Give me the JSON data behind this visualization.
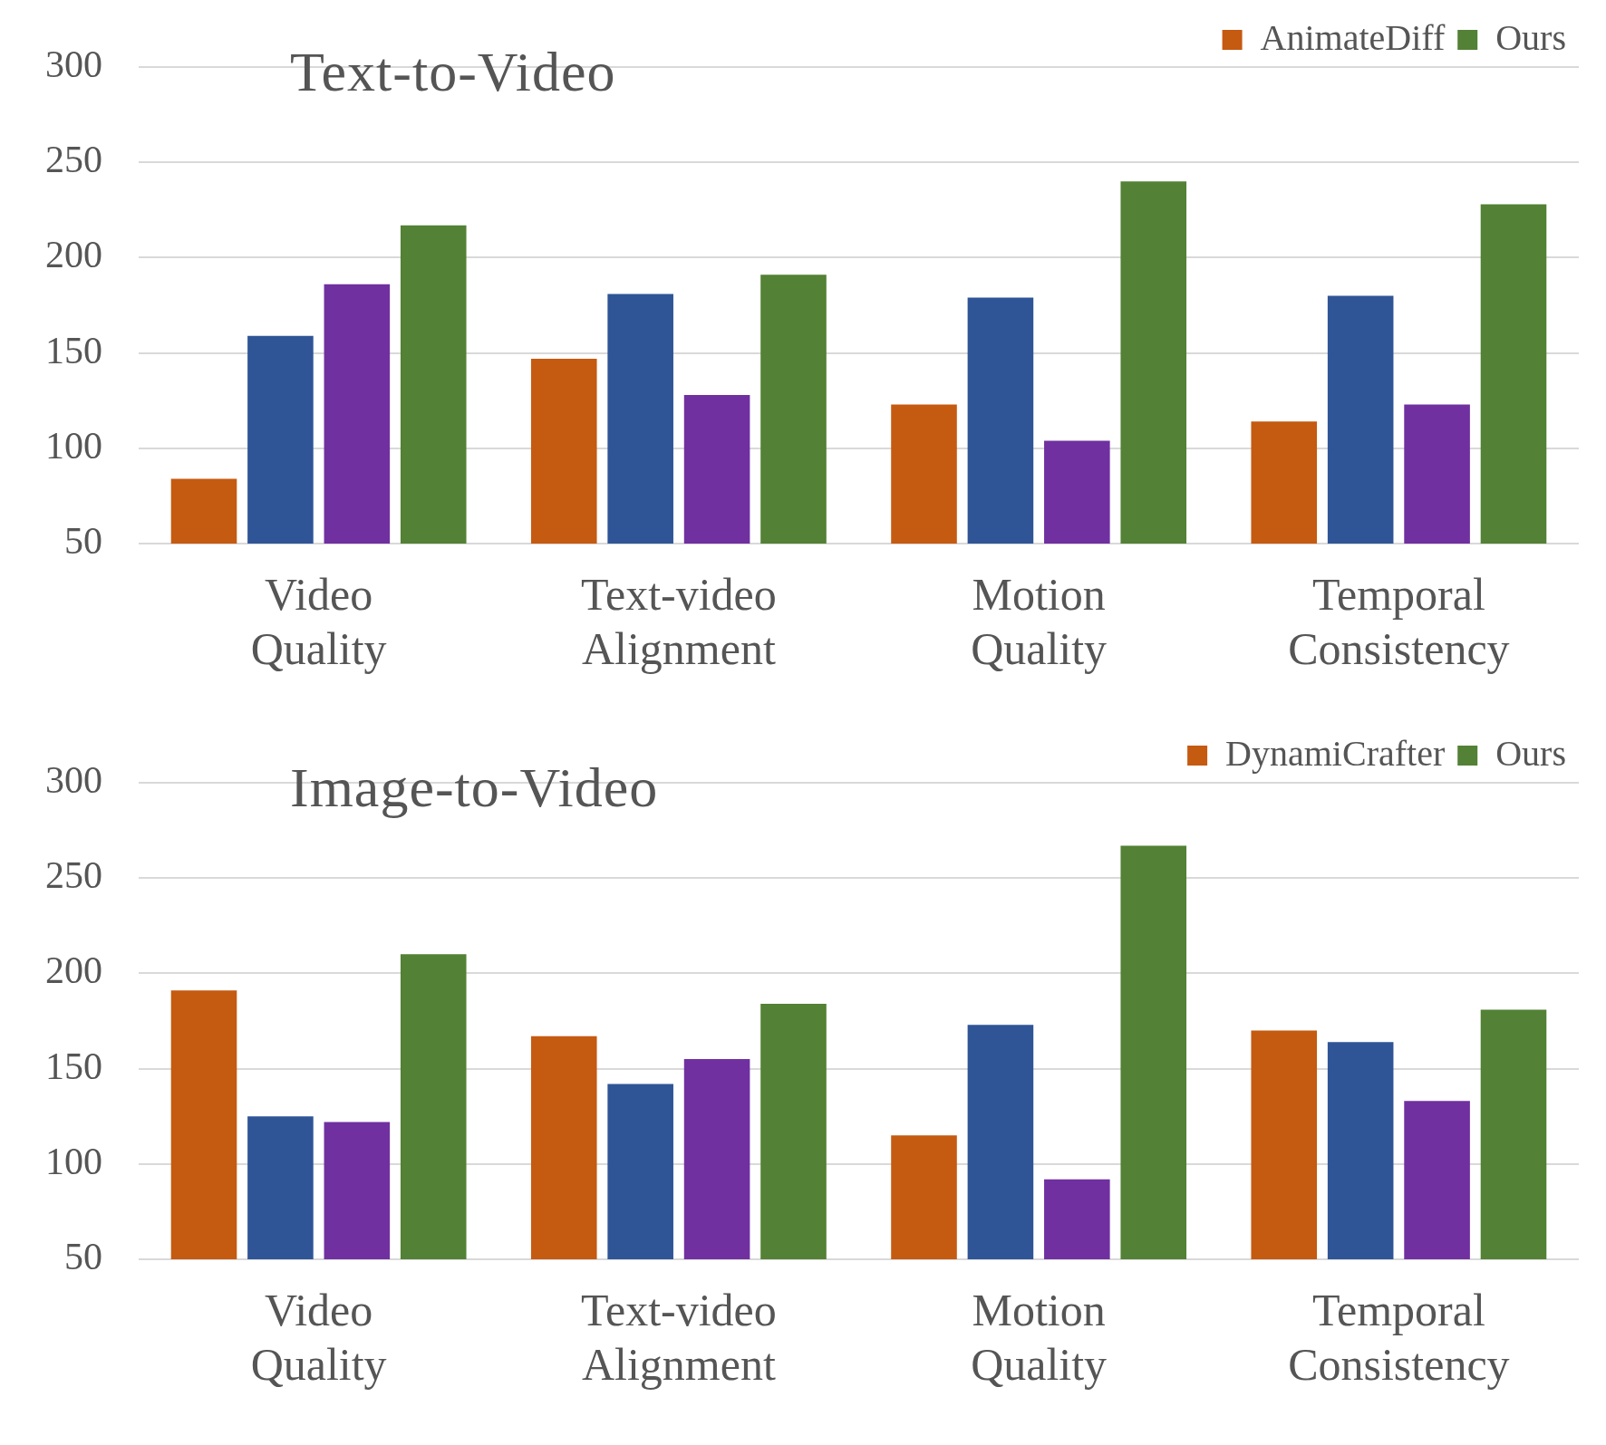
{
  "chart_data": [
    {
      "type": "bar",
      "title": "Text-to-Video",
      "categories": [
        "Video Quality",
        "Text-video Alignment",
        "Motion Quality",
        "Temporal Consistency"
      ],
      "series": [
        {
          "name": "AnimateDiff",
          "color": "#c55a11",
          "values": [
            84,
            147,
            123,
            114
          ]
        },
        {
          "color": "#2f5597",
          "values": [
            159,
            181,
            179,
            180
          ]
        },
        {
          "color": "#7030a0",
          "values": [
            186,
            128,
            104,
            123
          ]
        },
        {
          "name": "Ours",
          "color": "#538135",
          "values": [
            217,
            191,
            240,
            228
          ]
        }
      ],
      "ylim": [
        50,
        300
      ],
      "yticks": [
        50,
        100,
        150,
        200,
        250,
        300
      ],
      "grid": "y",
      "legend": "top right"
    },
    {
      "type": "bar",
      "title": "Image-to-Video",
      "categories": [
        "Video Quality",
        "Text-video Alignment",
        "Motion Quality",
        "Temporal Consistency"
      ],
      "series": [
        {
          "name": "DynamiCrafter",
          "color": "#c55a11",
          "values": [
            191,
            167,
            115,
            170
          ]
        },
        {
          "color": "#2f5597",
          "values": [
            125,
            142,
            173,
            164
          ]
        },
        {
          "color": "#7030a0",
          "values": [
            122,
            155,
            92,
            133
          ]
        },
        {
          "name": "Ours",
          "color": "#538135",
          "values": [
            210,
            184,
            267,
            181
          ]
        }
      ],
      "ylim": [
        50,
        300
      ],
      "yticks": [
        50,
        100,
        150,
        200,
        250,
        300
      ],
      "grid": "y",
      "legend": "top right"
    }
  ]
}
